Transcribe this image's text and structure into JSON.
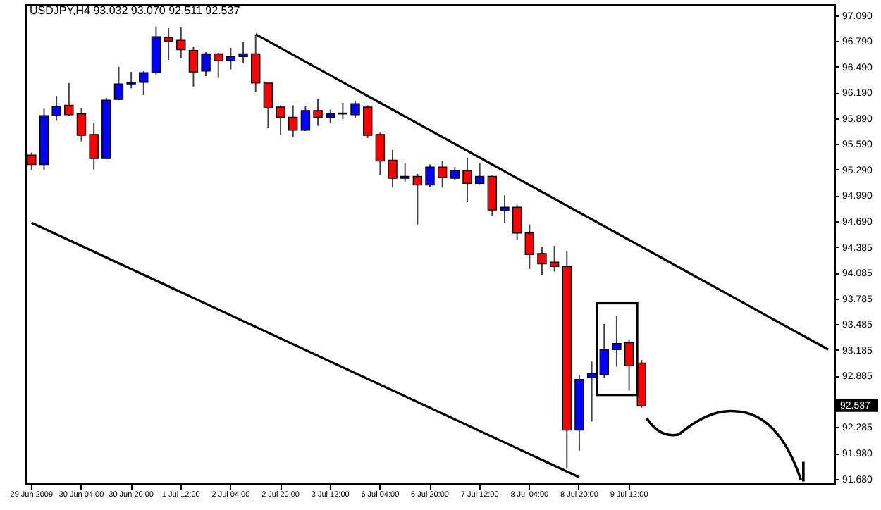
{
  "chart_data": {
    "type": "candlestick",
    "title": "USDJPY,H4  93.032 93.070 92.511 92.537",
    "categories": [
      "29 Jun 2009",
      null,
      null,
      null,
      "30 Jun 04:00",
      null,
      null,
      null,
      "30 Jun 20:00",
      null,
      null,
      null,
      "1 Jul 12:00",
      null,
      null,
      null,
      "2 Jul 04:00",
      null,
      null,
      null,
      "2 Jul 20:00",
      null,
      null,
      null,
      "3 Jul 12:00",
      null,
      null,
      null,
      "6 Jul 04:00",
      null,
      null,
      null,
      "6 Jul 20:00",
      null,
      null,
      null,
      "7 Jul 12:00",
      null,
      null,
      null,
      "8 Jul 04:00",
      null,
      null,
      null,
      "8 Jul 20:00",
      null,
      null,
      null,
      "9 Jul 12:00",
      null,
      null,
      null,
      null,
      null,
      null,
      null,
      null,
      null,
      null,
      null,
      null,
      null,
      null,
      null,
      null
    ],
    "ohlc": [
      [
        95.46,
        95.49,
        95.28,
        95.35
      ],
      [
        95.35,
        96.0,
        95.29,
        95.92
      ],
      [
        95.92,
        96.15,
        95.86,
        96.03
      ],
      [
        96.04,
        96.3,
        95.92,
        95.93
      ],
      [
        95.94,
        96.01,
        95.62,
        95.69
      ],
      [
        95.7,
        95.84,
        95.29,
        95.42
      ],
      [
        95.42,
        96.13,
        95.42,
        96.1
      ],
      [
        96.11,
        96.49,
        96.1,
        96.29
      ],
      [
        96.29,
        96.43,
        96.24,
        96.31
      ],
      [
        96.31,
        96.44,
        96.16,
        96.42
      ],
      [
        96.42,
        96.96,
        96.4,
        96.84
      ],
      [
        96.83,
        96.94,
        96.57,
        96.79
      ],
      [
        96.8,
        96.95,
        96.59,
        96.69
      ],
      [
        96.68,
        96.72,
        96.26,
        96.43
      ],
      [
        96.44,
        96.66,
        96.38,
        96.64
      ],
      [
        96.64,
        96.65,
        96.36,
        96.56
      ],
      [
        96.56,
        96.71,
        96.46,
        96.61
      ],
      [
        96.61,
        96.78,
        96.53,
        96.64
      ],
      [
        96.64,
        96.86,
        96.2,
        96.3
      ],
      [
        96.3,
        96.3,
        95.78,
        96.01
      ],
      [
        96.02,
        96.04,
        95.69,
        95.9
      ],
      [
        95.9,
        96.04,
        95.67,
        95.75
      ],
      [
        95.75,
        96.03,
        95.74,
        95.98
      ],
      [
        95.98,
        96.11,
        95.8,
        95.9
      ],
      [
        95.9,
        95.99,
        95.83,
        95.94
      ],
      [
        95.94,
        96.07,
        95.88,
        95.95
      ],
      [
        95.93,
        96.09,
        95.89,
        96.06
      ],
      [
        96.02,
        96.04,
        95.66,
        95.69
      ],
      [
        95.7,
        95.72,
        95.23,
        95.39
      ],
      [
        95.4,
        95.52,
        95.08,
        95.19
      ],
      [
        95.19,
        95.37,
        95.14,
        95.21
      ],
      [
        95.21,
        95.24,
        94.65,
        95.11
      ],
      [
        95.11,
        95.35,
        95.09,
        95.32
      ],
      [
        95.32,
        95.39,
        95.08,
        95.2
      ],
      [
        95.19,
        95.32,
        95.17,
        95.28
      ],
      [
        95.28,
        95.43,
        94.91,
        95.13
      ],
      [
        95.13,
        95.37,
        95.12,
        95.21
      ],
      [
        95.21,
        95.22,
        94.75,
        94.82
      ],
      [
        94.81,
        94.99,
        94.67,
        94.85
      ],
      [
        94.85,
        94.88,
        94.47,
        94.55
      ],
      [
        94.55,
        94.65,
        94.13,
        94.3
      ],
      [
        94.31,
        94.39,
        94.06,
        94.19
      ],
      [
        94.21,
        94.4,
        94.1,
        94.16
      ],
      [
        94.16,
        94.34,
        91.8,
        92.25
      ],
      [
        92.25,
        92.89,
        92.01,
        92.84
      ],
      [
        92.86,
        93.05,
        92.35,
        92.91
      ],
      [
        92.9,
        93.49,
        92.86,
        93.19
      ],
      [
        93.19,
        93.58,
        92.99,
        93.26
      ],
      [
        93.27,
        93.3,
        92.71,
        93.0
      ],
      [
        93.032,
        93.07,
        92.511,
        92.537
      ],
      null,
      null,
      null,
      null,
      null,
      null,
      null,
      null,
      null,
      null,
      null,
      null,
      null,
      null,
      null
    ],
    "colors": [
      "#ff0000",
      "#0000ff",
      "#0000ff",
      "#ff0000",
      "#ff0000",
      "#ff0000",
      "#0000ff",
      "#0000ff",
      "#0000ff",
      "#0000ff",
      "#0000ff",
      "#ff0000",
      "#ff0000",
      "#ff0000",
      "#0000ff",
      "#ff0000",
      "#0000ff",
      "#0000ff",
      "#ff0000",
      "#ff0000",
      "#ff0000",
      "#ff0000",
      "#0000ff",
      "#ff0000",
      "#0000ff",
      "#0000ff",
      "#0000ff",
      "#ff0000",
      "#ff0000",
      "#ff0000",
      "#0000ff",
      "#ff0000",
      "#0000ff",
      "#ff0000",
      "#0000ff",
      "#ff0000",
      "#0000ff",
      "#ff0000",
      "#0000ff",
      "#ff0000",
      "#ff0000",
      "#ff0000",
      "#ff0000",
      "#ff0000",
      "#0000ff",
      "#0000ff",
      "#0000ff",
      "#0000ff",
      "#ff0000",
      "#ff0000",
      null,
      null,
      null,
      null,
      null,
      null,
      null,
      null,
      null,
      null,
      null,
      null,
      null,
      null,
      null
    ],
    "series": [
      {
        "type": "line",
        "color": "#000000",
        "values": [
          null,
          null,
          null,
          null,
          null,
          null,
          null,
          null,
          null,
          null,
          null,
          null,
          null,
          null,
          null,
          null,
          null,
          null,
          96.87,
          null,
          null,
          null,
          null,
          null,
          null,
          null,
          null,
          null,
          null,
          null,
          null,
          null,
          null,
          null,
          null,
          null,
          null,
          null,
          null,
          null,
          null,
          null,
          null,
          null,
          null,
          null,
          null,
          null,
          null,
          null,
          null,
          null,
          null,
          null,
          null,
          null,
          null,
          null,
          null,
          null,
          null,
          null,
          null,
          null,
          93.19
        ]
      },
      {
        "type": "line",
        "color": "#000000",
        "values": [
          94.67,
          null,
          null,
          null,
          null,
          null,
          null,
          null,
          null,
          null,
          null,
          null,
          null,
          null,
          null,
          null,
          null,
          null,
          null,
          null,
          null,
          null,
          null,
          null,
          null,
          null,
          null,
          null,
          null,
          null,
          null,
          null,
          null,
          null,
          null,
          null,
          null,
          null,
          null,
          null,
          null,
          null,
          null,
          null,
          91.7,
          null,
          null,
          null,
          null,
          null,
          null,
          null,
          null,
          null,
          null,
          null,
          null,
          null,
          null,
          null,
          null,
          null,
          null,
          null,
          null
        ]
      }
    ],
    "ylim": [
      91.63,
      97.22
    ],
    "yticks": [
      {
        "value": 97.09,
        "label": "97.090"
      },
      {
        "value": 96.79,
        "label": "96.790"
      },
      {
        "value": 96.49,
        "label": "96.490"
      },
      {
        "value": 96.19,
        "label": "96.190"
      },
      {
        "value": 95.89,
        "label": "95.890"
      },
      {
        "value": 95.59,
        "label": "95.590"
      },
      {
        "value": 95.29,
        "label": "95.290"
      },
      {
        "value": 94.99,
        "label": "94.990"
      },
      {
        "value": 94.69,
        "label": "94.690"
      },
      94.385,
      94.085,
      93.785,
      93.485,
      93.185,
      92.885,
      92.285,
      {
        "value": 91.98,
        "label": "91.980"
      },
      {
        "value": 91.68,
        "label": "91.680"
      }
    ],
    "annotations": [
      "92.537"
    ],
    "grid": false
  }
}
